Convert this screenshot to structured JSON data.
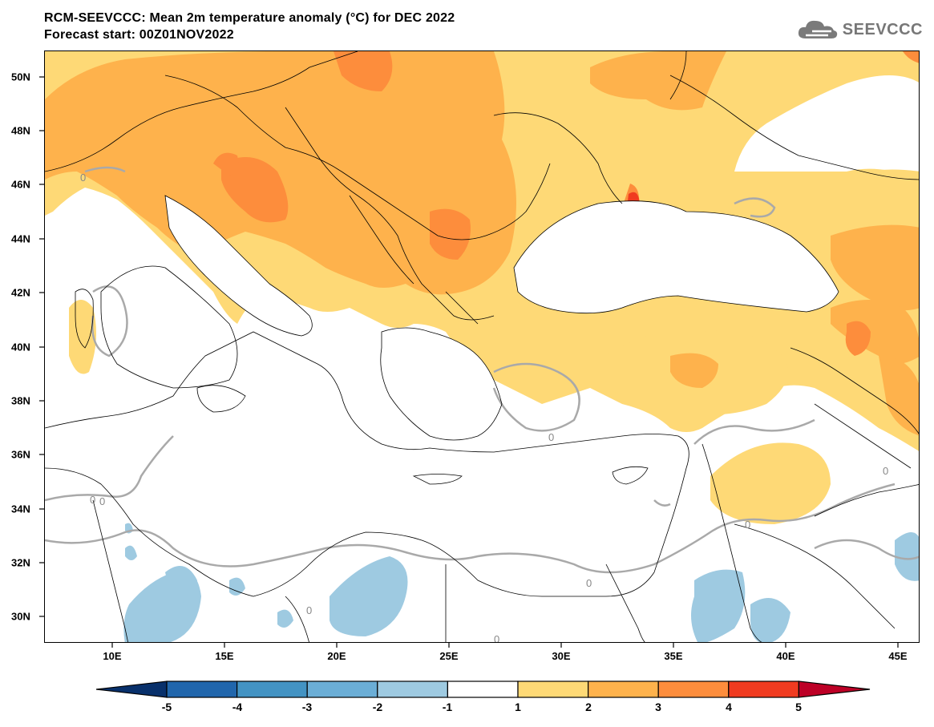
{
  "title": {
    "line1": "RCM-SEEVCCC: Mean 2m temperature anomaly (°C) for DEC 2022",
    "line2": "Forecast start: 00Z01NOV2022"
  },
  "logo": {
    "text": "SEEVCCC",
    "icon": "cloud-icon"
  },
  "map": {
    "projection": "lat-lon",
    "lon_range": [
      7,
      46
    ],
    "lat_range": [
      29,
      51
    ],
    "lat_ticks": [
      "50N",
      "48N",
      "46N",
      "44N",
      "42N",
      "40N",
      "38N",
      "36N",
      "34N",
      "32N",
      "30N"
    ],
    "lon_ticks": [
      "10E",
      "15E",
      "20E",
      "25E",
      "30E",
      "35E",
      "40E",
      "45E"
    ],
    "contour_label": "0"
  },
  "colorbar": {
    "labels": [
      "-5",
      "-4",
      "-3",
      "-2",
      "-1",
      "1",
      "2",
      "3",
      "4",
      "5"
    ],
    "colors": [
      "#08306b",
      "#2166ac",
      "#4393c3",
      "#6baed6",
      "#9ecae1",
      "#ffffff",
      "#fed976",
      "#feb24c",
      "#fd8d3c",
      "#f03b20",
      "#bd0026"
    ]
  }
}
